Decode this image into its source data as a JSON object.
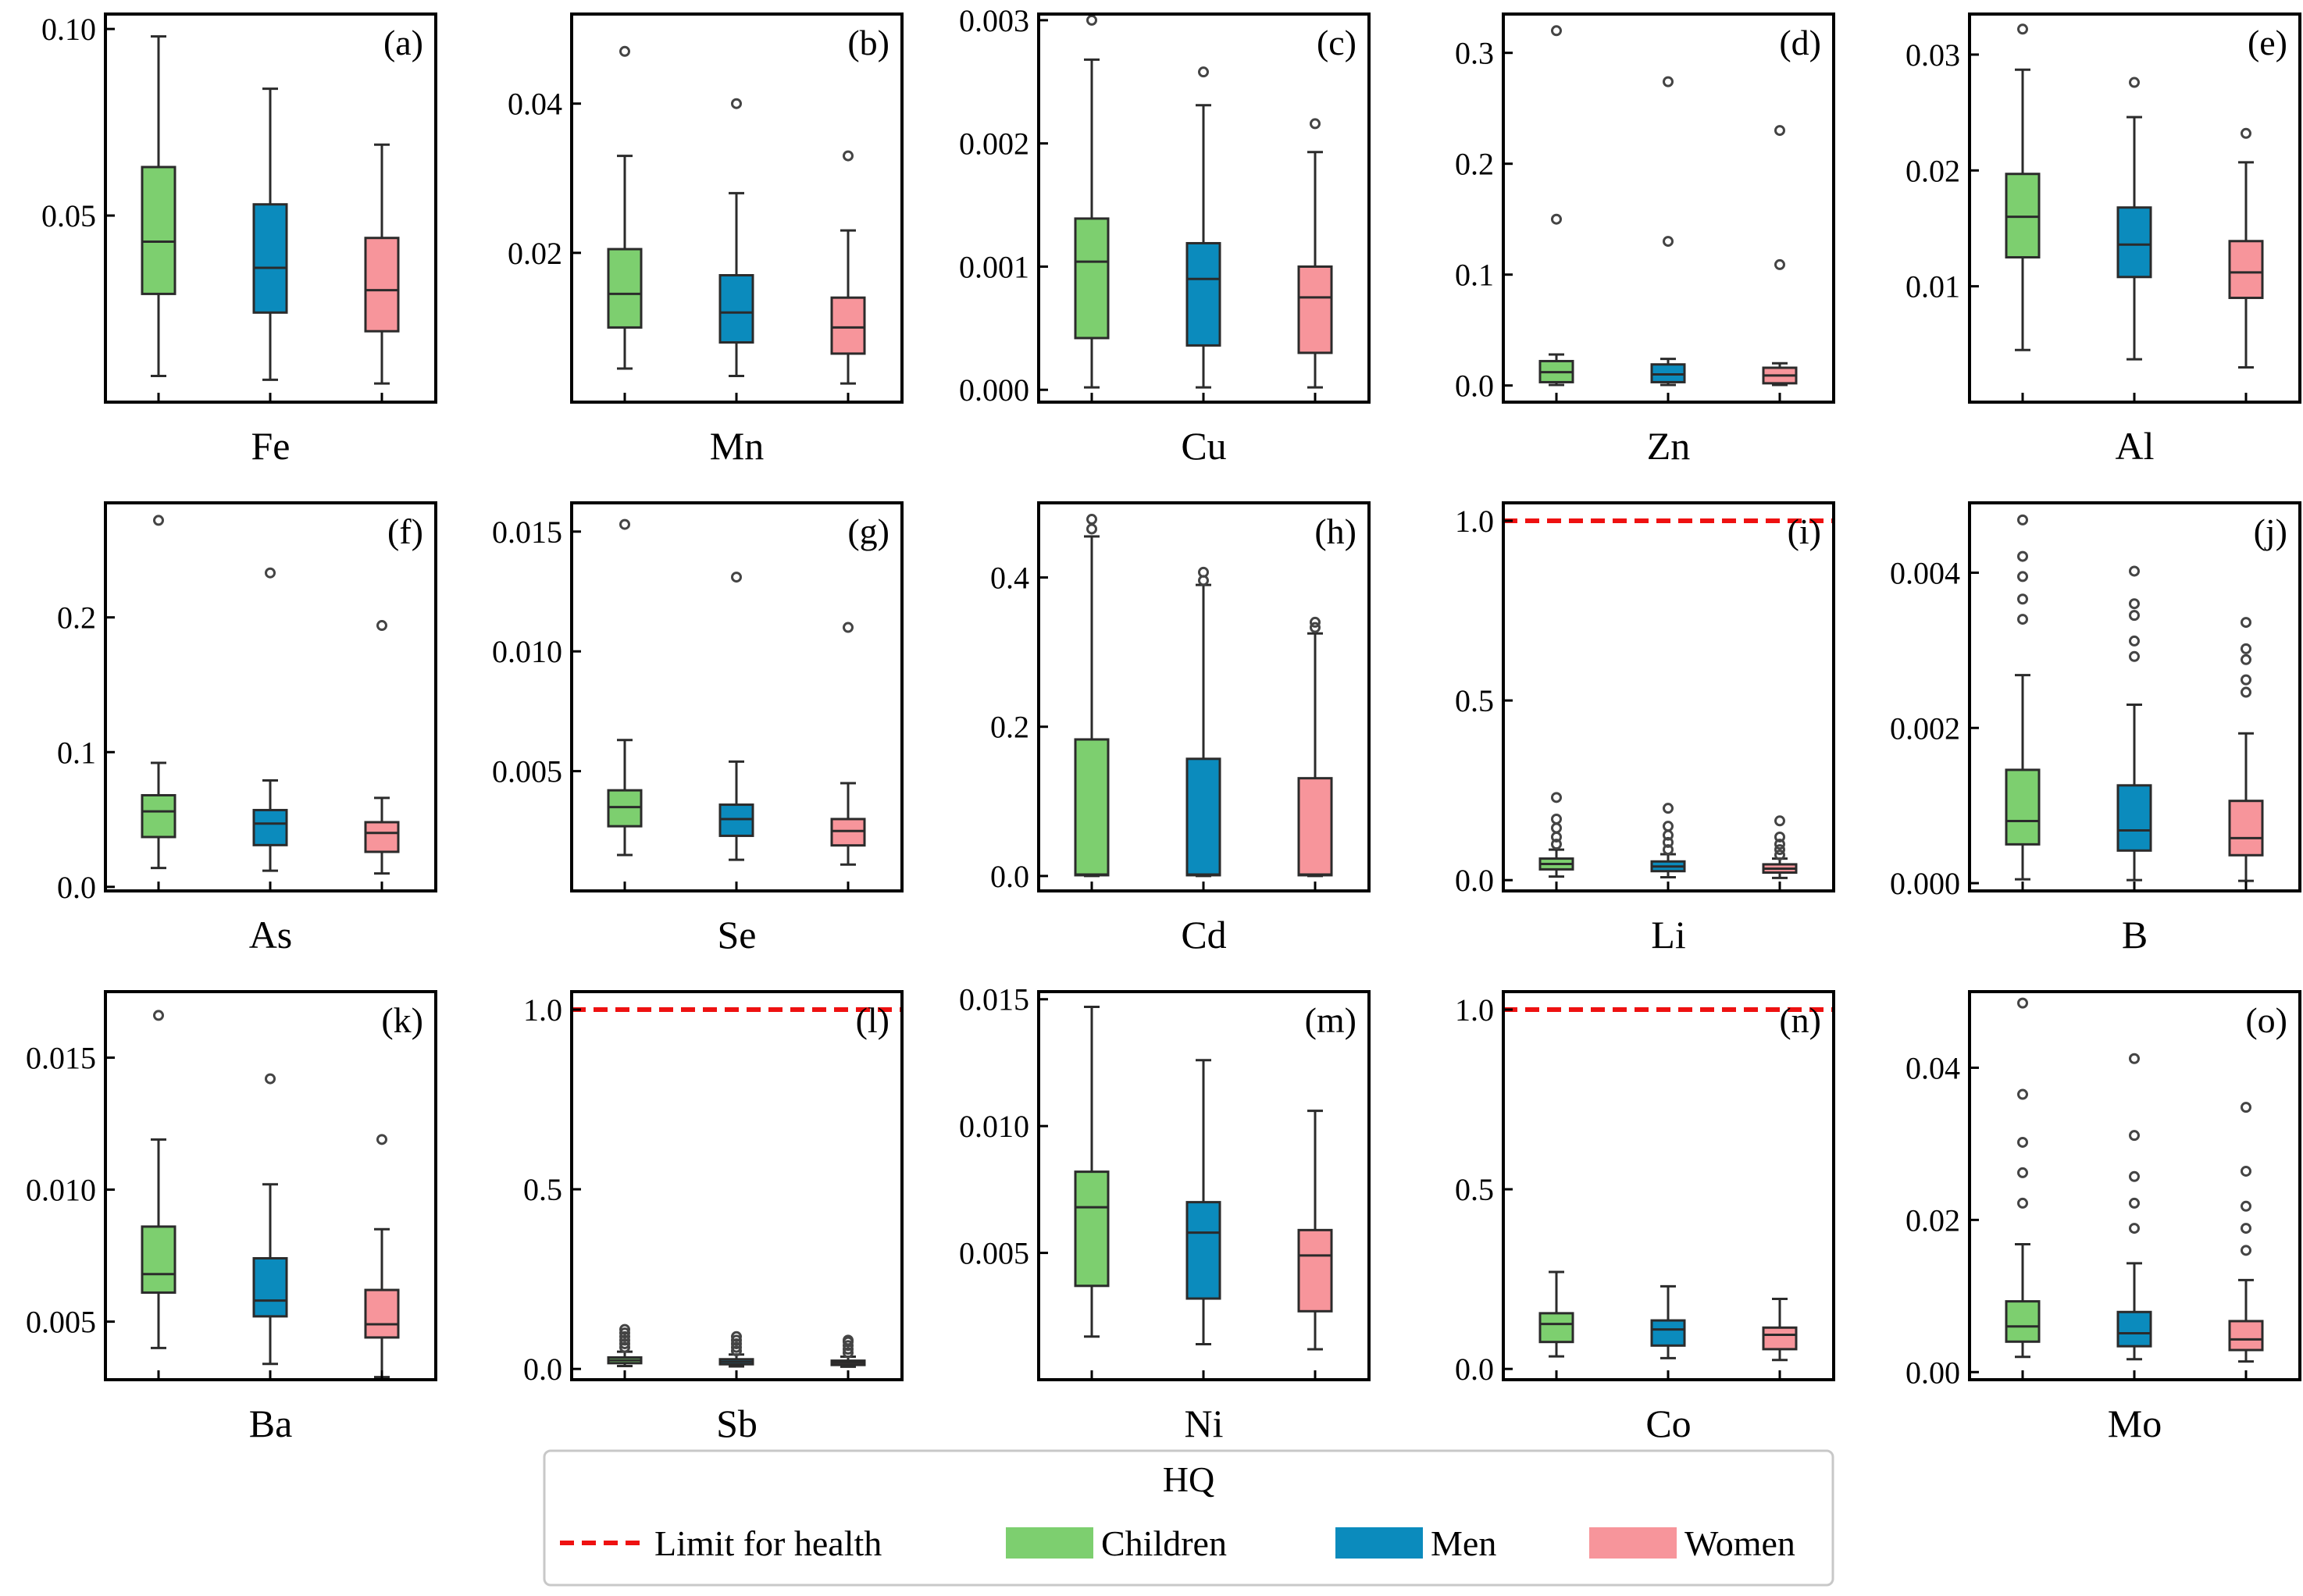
{
  "legend": {
    "title": "HQ",
    "items": [
      {
        "label": "Limit for health",
        "kind": "line",
        "color": "#ee1111"
      },
      {
        "label": "Children",
        "kind": "patch",
        "color": "#7dcf6f"
      },
      {
        "label": "Men",
        "kind": "patch",
        "color": "#0b8bbd"
      },
      {
        "label": "Women",
        "kind": "patch",
        "color": "#f7959b"
      }
    ]
  },
  "colors": {
    "Children": "#7dcf6f",
    "Men": "#0b8bbd",
    "Women": "#f7959b",
    "limit": "#ee1111",
    "edge": "#2b2b2b",
    "flier": "#444444"
  },
  "chart_data": [
    {
      "type": "box",
      "panel": "(a)",
      "xlabel": "Fe",
      "ylim": [
        0.0,
        0.104
      ],
      "yticks": [
        0.05,
        0.1
      ],
      "ytick_labels": [
        "0.05",
        "0.10"
      ],
      "series": [
        {
          "name": "Children",
          "stats": {
            "whislo": 0.007,
            "q1": 0.029,
            "med": 0.043,
            "q3": 0.063,
            "whishi": 0.098
          },
          "fliers": []
        },
        {
          "name": "Men",
          "stats": {
            "whislo": 0.006,
            "q1": 0.024,
            "med": 0.036,
            "q3": 0.053,
            "whishi": 0.084
          },
          "fliers": []
        },
        {
          "name": "Women",
          "stats": {
            "whislo": 0.005,
            "q1": 0.019,
            "med": 0.03,
            "q3": 0.044,
            "whishi": 0.069
          },
          "fliers": []
        }
      ]
    },
    {
      "type": "box",
      "panel": "(b)",
      "xlabel": "Mn",
      "ylim": [
        0.0,
        0.052
      ],
      "yticks": [
        0.02,
        0.04
      ],
      "ytick_labels": [
        "0.02",
        "0.04"
      ],
      "series": [
        {
          "name": "Children",
          "stats": {
            "whislo": 0.0045,
            "q1": 0.01,
            "med": 0.0145,
            "q3": 0.0205,
            "whishi": 0.033
          },
          "fliers": [
            0.047
          ]
        },
        {
          "name": "Men",
          "stats": {
            "whislo": 0.0035,
            "q1": 0.008,
            "med": 0.012,
            "q3": 0.017,
            "whishi": 0.028
          },
          "fliers": [
            0.04
          ]
        },
        {
          "name": "Women",
          "stats": {
            "whislo": 0.0025,
            "q1": 0.0065,
            "med": 0.01,
            "q3": 0.014,
            "whishi": 0.023
          },
          "fliers": [
            0.033
          ]
        }
      ]
    },
    {
      "type": "box",
      "panel": "(c)",
      "xlabel": "Cu",
      "ylim": [
        -0.0001,
        0.00305
      ],
      "yticks": [
        0.0,
        0.001,
        0.002,
        0.003
      ],
      "ytick_labels": [
        "0.000",
        "0.001",
        "0.002",
        "0.003"
      ],
      "series": [
        {
          "name": "Children",
          "stats": {
            "whislo": 2e-05,
            "q1": 0.00042,
            "med": 0.00104,
            "q3": 0.00139,
            "whishi": 0.00268
          },
          "fliers": [
            0.003
          ]
        },
        {
          "name": "Men",
          "stats": {
            "whislo": 2e-05,
            "q1": 0.00036,
            "med": 0.0009,
            "q3": 0.00119,
            "whishi": 0.00231
          },
          "fliers": [
            0.00258
          ]
        },
        {
          "name": "Women",
          "stats": {
            "whislo": 2e-05,
            "q1": 0.0003,
            "med": 0.00075,
            "q3": 0.001,
            "whishi": 0.00193
          },
          "fliers": [
            0.00216
          ]
        }
      ]
    },
    {
      "type": "box",
      "panel": "(d)",
      "xlabel": "Zn",
      "ylim": [
        -0.015,
        0.335
      ],
      "yticks": [
        0.0,
        0.1,
        0.2,
        0.3
      ],
      "ytick_labels": [
        "0.0",
        "0.1",
        "0.2",
        "0.3"
      ],
      "series": [
        {
          "name": "Children",
          "stats": {
            "whislo": 0.0005,
            "q1": 0.003,
            "med": 0.012,
            "q3": 0.022,
            "whishi": 0.028
          },
          "fliers": [
            0.15,
            0.32
          ]
        },
        {
          "name": "Men",
          "stats": {
            "whislo": 0.0005,
            "q1": 0.003,
            "med": 0.01,
            "q3": 0.019,
            "whishi": 0.024
          },
          "fliers": [
            0.13,
            0.274
          ]
        },
        {
          "name": "Women",
          "stats": {
            "whislo": 0.0005,
            "q1": 0.002,
            "med": 0.009,
            "q3": 0.016,
            "whishi": 0.02
          },
          "fliers": [
            0.109,
            0.23
          ]
        }
      ]
    },
    {
      "type": "box",
      "panel": "(e)",
      "xlabel": "Al",
      "ylim": [
        0.0,
        0.0335
      ],
      "yticks": [
        0.01,
        0.02,
        0.03
      ],
      "ytick_labels": [
        "0.01",
        "0.02",
        "0.03"
      ],
      "series": [
        {
          "name": "Children",
          "stats": {
            "whislo": 0.0045,
            "q1": 0.0125,
            "med": 0.016,
            "q3": 0.0197,
            "whishi": 0.0287
          },
          "fliers": [
            0.0322
          ]
        },
        {
          "name": "Men",
          "stats": {
            "whislo": 0.0037,
            "q1": 0.0108,
            "med": 0.0136,
            "q3": 0.0168,
            "whishi": 0.0246
          },
          "fliers": [
            0.0276
          ]
        },
        {
          "name": "Women",
          "stats": {
            "whislo": 0.003,
            "q1": 0.009,
            "med": 0.0112,
            "q3": 0.0139,
            "whishi": 0.0207
          },
          "fliers": [
            0.0232
          ]
        }
      ]
    },
    {
      "type": "box",
      "panel": "(f)",
      "xlabel": "As",
      "ylim": [
        -0.003,
        0.285
      ],
      "yticks": [
        0.0,
        0.1,
        0.2
      ],
      "ytick_labels": [
        "0.0",
        "0.1",
        "0.2"
      ],
      "series": [
        {
          "name": "Children",
          "stats": {
            "whislo": 0.014,
            "q1": 0.037,
            "med": 0.056,
            "q3": 0.068,
            "whishi": 0.092
          },
          "fliers": [
            0.272
          ]
        },
        {
          "name": "Men",
          "stats": {
            "whislo": 0.012,
            "q1": 0.031,
            "med": 0.047,
            "q3": 0.057,
            "whishi": 0.079
          },
          "fliers": [
            0.233
          ]
        },
        {
          "name": "Women",
          "stats": {
            "whislo": 0.01,
            "q1": 0.026,
            "med": 0.04,
            "q3": 0.048,
            "whishi": 0.066
          },
          "fliers": [
            0.194
          ]
        }
      ]
    },
    {
      "type": "box",
      "panel": "(g)",
      "xlabel": "Se",
      "ylim": [
        0.0,
        0.0162
      ],
      "yticks": [
        0.005,
        0.01,
        0.015
      ],
      "ytick_labels": [
        "0.005",
        "0.010",
        "0.015"
      ],
      "series": [
        {
          "name": "Children",
          "stats": {
            "whislo": 0.0015,
            "q1": 0.0027,
            "med": 0.0035,
            "q3": 0.0042,
            "whishi": 0.0063
          },
          "fliers": [
            0.0153
          ]
        },
        {
          "name": "Men",
          "stats": {
            "whislo": 0.0013,
            "q1": 0.0023,
            "med": 0.003,
            "q3": 0.0036,
            "whishi": 0.0054
          },
          "fliers": [
            0.0131
          ]
        },
        {
          "name": "Women",
          "stats": {
            "whislo": 0.0011,
            "q1": 0.0019,
            "med": 0.0025,
            "q3": 0.003,
            "whishi": 0.0045
          },
          "fliers": [
            0.011
          ]
        }
      ]
    },
    {
      "type": "box",
      "panel": "(h)",
      "xlabel": "Cd",
      "ylim": [
        -0.02,
        0.5
      ],
      "yticks": [
        0.0,
        0.2,
        0.4
      ],
      "ytick_labels": [
        "0.0",
        "0.2",
        "0.4"
      ],
      "series": [
        {
          "name": "Children",
          "stats": {
            "whislo": 0.0,
            "q1": 0.001,
            "med": 0.002,
            "q3": 0.183,
            "whishi": 0.455
          },
          "fliers": [
            0.465,
            0.478
          ]
        },
        {
          "name": "Men",
          "stats": {
            "whislo": 0.0,
            "q1": 0.001,
            "med": 0.002,
            "q3": 0.157,
            "whishi": 0.39
          },
          "fliers": [
            0.396,
            0.407
          ]
        },
        {
          "name": "Women",
          "stats": {
            "whislo": 0.0,
            "q1": 0.001,
            "med": 0.002,
            "q3": 0.131,
            "whishi": 0.325
          },
          "fliers": [
            0.333,
            0.34
          ]
        }
      ]
    },
    {
      "type": "box",
      "panel": "(i)",
      "xlabel": "Li",
      "ylim": [
        -0.03,
        1.05
      ],
      "yticks": [
        0.0,
        0.5,
        1.0
      ],
      "ytick_labels": [
        "0.0",
        "0.5",
        "1.0"
      ],
      "limit_line": 1.0,
      "series": [
        {
          "name": "Children",
          "stats": {
            "whislo": 0.01,
            "q1": 0.03,
            "med": 0.045,
            "q3": 0.06,
            "whishi": 0.085
          },
          "fliers": [
            0.1,
            0.12,
            0.145,
            0.17,
            0.23
          ]
        },
        {
          "name": "Men",
          "stats": {
            "whislo": 0.008,
            "q1": 0.025,
            "med": 0.038,
            "q3": 0.052,
            "whishi": 0.072
          },
          "fliers": [
            0.085,
            0.105,
            0.125,
            0.15,
            0.2
          ]
        },
        {
          "name": "Women",
          "stats": {
            "whislo": 0.006,
            "q1": 0.021,
            "med": 0.032,
            "q3": 0.044,
            "whishi": 0.06
          },
          "fliers": [
            0.07,
            0.085,
            0.1,
            0.12,
            0.165
          ]
        }
      ]
    },
    {
      "type": "box",
      "panel": "(j)",
      "xlabel": "B",
      "ylim": [
        -0.0001,
        0.0049
      ],
      "yticks": [
        0.0,
        0.002,
        0.004
      ],
      "ytick_labels": [
        "0.000",
        "0.002",
        "0.004"
      ],
      "series": [
        {
          "name": "Children",
          "stats": {
            "whislo": 5e-05,
            "q1": 0.0005,
            "med": 0.0008,
            "q3": 0.00146,
            "whishi": 0.00268
          },
          "fliers": [
            0.0034,
            0.00366,
            0.00395,
            0.00421,
            0.00468
          ]
        },
        {
          "name": "Men",
          "stats": {
            "whislo": 4e-05,
            "q1": 0.00042,
            "med": 0.00068,
            "q3": 0.00126,
            "whishi": 0.0023
          },
          "fliers": [
            0.00292,
            0.00312,
            0.00345,
            0.0036,
            0.00402
          ]
        },
        {
          "name": "Women",
          "stats": {
            "whislo": 3e-05,
            "q1": 0.00036,
            "med": 0.00058,
            "q3": 0.00106,
            "whishi": 0.00193
          },
          "fliers": [
            0.00246,
            0.00262,
            0.00288,
            0.00302,
            0.00336
          ]
        }
      ]
    },
    {
      "type": "box",
      "panel": "(k)",
      "xlabel": "Ba",
      "ylim": [
        0.0028,
        0.0175
      ],
      "yticks": [
        0.005,
        0.01,
        0.015
      ],
      "ytick_labels": [
        "0.005",
        "0.010",
        "0.015"
      ],
      "series": [
        {
          "name": "Children",
          "stats": {
            "whislo": 0.004,
            "q1": 0.0061,
            "med": 0.0068,
            "q3": 0.0086,
            "whishi": 0.0119
          },
          "fliers": [
            0.0166
          ]
        },
        {
          "name": "Men",
          "stats": {
            "whislo": 0.0034,
            "q1": 0.0052,
            "med": 0.0058,
            "q3": 0.0074,
            "whishi": 0.0102
          },
          "fliers": [
            0.0142
          ]
        },
        {
          "name": "Women",
          "stats": {
            "whislo": 0.0029,
            "q1": 0.0044,
            "med": 0.0049,
            "q3": 0.0062,
            "whishi": 0.0085
          },
          "fliers": [
            0.0119
          ]
        }
      ]
    },
    {
      "type": "box",
      "panel": "(l)",
      "xlabel": "Sb",
      "ylim": [
        -0.03,
        1.05
      ],
      "yticks": [
        0.0,
        0.5,
        1.0
      ],
      "ytick_labels": [
        "0.0",
        "0.5",
        "1.0"
      ],
      "limit_line": 1.0,
      "series": [
        {
          "name": "Children",
          "stats": {
            "whislo": 0.008,
            "q1": 0.016,
            "med": 0.024,
            "q3": 0.032,
            "whishi": 0.048
          },
          "fliers": [
            0.06,
            0.07,
            0.08,
            0.09,
            0.1,
            0.11
          ]
        },
        {
          "name": "Men",
          "stats": {
            "whislo": 0.007,
            "q1": 0.013,
            "med": 0.02,
            "q3": 0.027,
            "whishi": 0.04
          },
          "fliers": [
            0.05,
            0.06,
            0.07,
            0.08,
            0.09
          ]
        },
        {
          "name": "Women",
          "stats": {
            "whislo": 0.006,
            "q1": 0.011,
            "med": 0.017,
            "q3": 0.023,
            "whishi": 0.034
          },
          "fliers": [
            0.045,
            0.055,
            0.065,
            0.075,
            0.08
          ]
        }
      ]
    },
    {
      "type": "box",
      "panel": "(m)",
      "xlabel": "Ni",
      "ylim": [
        0.0,
        0.0153
      ],
      "yticks": [
        0.005,
        0.01,
        0.015
      ],
      "ytick_labels": [
        "0.005",
        "0.010",
        "0.015"
      ],
      "series": [
        {
          "name": "Children",
          "stats": {
            "whislo": 0.0017,
            "q1": 0.0037,
            "med": 0.0068,
            "q3": 0.0082,
            "whishi": 0.0147
          },
          "fliers": []
        },
        {
          "name": "Men",
          "stats": {
            "whislo": 0.0014,
            "q1": 0.0032,
            "med": 0.0058,
            "q3": 0.007,
            "whishi": 0.0126
          },
          "fliers": []
        },
        {
          "name": "Women",
          "stats": {
            "whislo": 0.0012,
            "q1": 0.0027,
            "med": 0.0049,
            "q3": 0.0059,
            "whishi": 0.0106
          },
          "fliers": []
        }
      ]
    },
    {
      "type": "box",
      "panel": "(n)",
      "xlabel": "Co",
      "ylim": [
        -0.03,
        1.05
      ],
      "yticks": [
        0.0,
        0.5,
        1.0
      ],
      "ytick_labels": [
        "0.0",
        "0.5",
        "1.0"
      ],
      "limit_line": 1.0,
      "series": [
        {
          "name": "Children",
          "stats": {
            "whislo": 0.035,
            "q1": 0.075,
            "med": 0.125,
            "q3": 0.155,
            "whishi": 0.27
          },
          "fliers": []
        },
        {
          "name": "Men",
          "stats": {
            "whislo": 0.03,
            "q1": 0.065,
            "med": 0.11,
            "q3": 0.135,
            "whishi": 0.23
          },
          "fliers": []
        },
        {
          "name": "Women",
          "stats": {
            "whislo": 0.025,
            "q1": 0.055,
            "med": 0.095,
            "q3": 0.115,
            "whishi": 0.195
          },
          "fliers": []
        }
      ]
    },
    {
      "type": "box",
      "panel": "(o)",
      "xlabel": "Mo",
      "ylim": [
        -0.001,
        0.05
      ],
      "yticks": [
        0.0,
        0.02,
        0.04
      ],
      "ytick_labels": [
        "0.00",
        "0.02",
        "0.04"
      ],
      "series": [
        {
          "name": "Children",
          "stats": {
            "whislo": 0.002,
            "q1": 0.004,
            "med": 0.006,
            "q3": 0.0093,
            "whishi": 0.0168
          },
          "fliers": [
            0.0222,
            0.0262,
            0.0302,
            0.0365,
            0.0485
          ]
        },
        {
          "name": "Men",
          "stats": {
            "whislo": 0.0017,
            "q1": 0.0034,
            "med": 0.0051,
            "q3": 0.0079,
            "whishi": 0.0143
          },
          "fliers": [
            0.0189,
            0.0222,
            0.0257,
            0.0311,
            0.0412
          ]
        },
        {
          "name": "Women",
          "stats": {
            "whislo": 0.0014,
            "q1": 0.0029,
            "med": 0.0043,
            "q3": 0.0067,
            "whishi": 0.0121
          },
          "fliers": [
            0.016,
            0.0189,
            0.0218,
            0.0264,
            0.0348
          ]
        }
      ]
    }
  ]
}
